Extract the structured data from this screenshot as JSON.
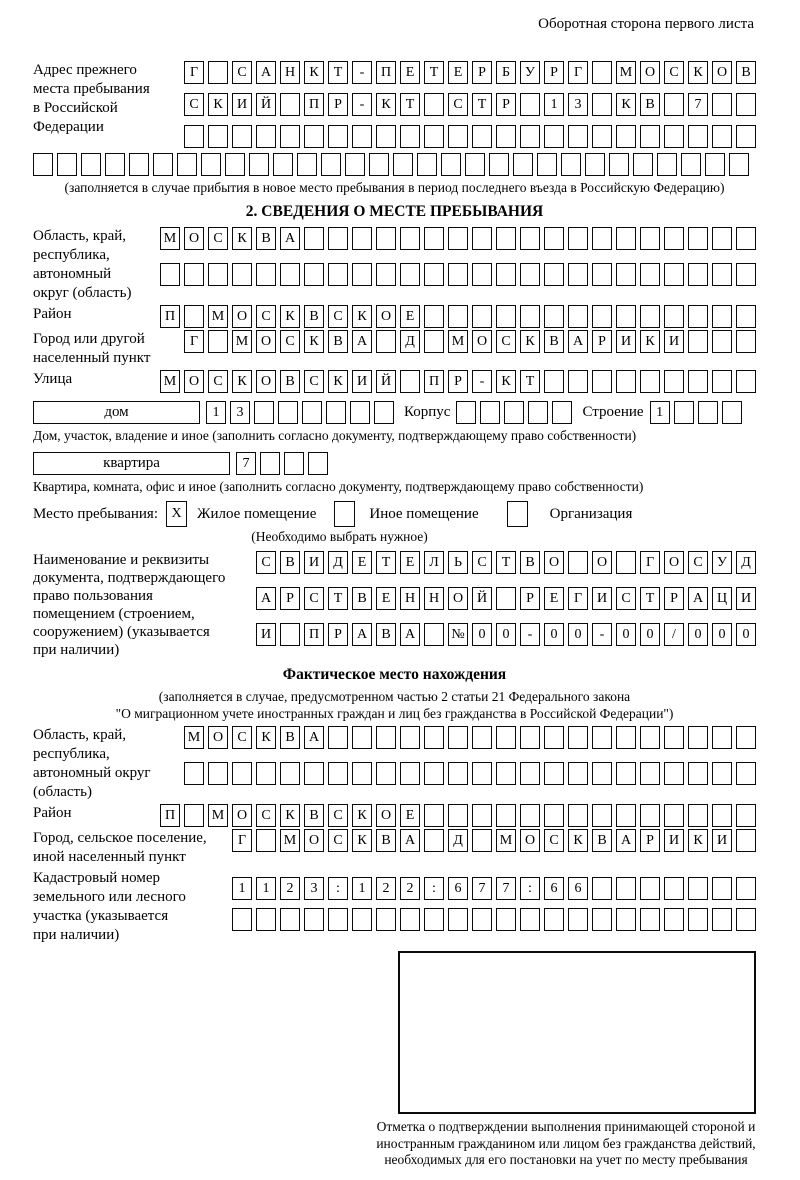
{
  "page": {
    "back_note": "Оборотная сторона первого листа"
  },
  "prev": {
    "label_lines": [
      "Адрес прежнего",
      "места пребывания",
      "в Российской",
      "Федерации"
    ],
    "row1": "Г САНКТ-ПЕТЕРБУРГ МОСКОВ",
    "row2": "СКИЙ ПР-КТ СТР 13 КВ 7",
    "row3": "",
    "row4": "",
    "caption": "(заполняется в случае прибытия в новое место пребывания в период последнего въезда в Российскую Федерацию)"
  },
  "sec2": {
    "title": "2. СВЕДЕНИЯ О МЕСТЕ ПРЕБЫВАНИЯ",
    "oblast": {
      "label_lines": [
        "Область, край,",
        "республика,",
        "автономный",
        "округ (область)"
      ],
      "row1": "МОСКВА",
      "row2": ""
    },
    "raion": {
      "label": "Район",
      "row": "П МОСКВСКОЕ"
    },
    "gorod": {
      "label_lines": [
        "Город или другой",
        "населенный пункт"
      ],
      "row": "Г МОСКВА Д МОСКВАРИКИ"
    },
    "ulitsa": {
      "label": "Улица",
      "row": "МОСКОВСКИЙ ПР-КТ"
    },
    "dom": {
      "box_label": "дом",
      "cells": "13",
      "korpus_label": "Корпус",
      "korpus_cells": "",
      "stroenie_label": "Строение",
      "stroenie_cells": "1",
      "caption": "Дом, участок, владение и иное (заполнить согласно документу, подтверждающему право собственности)"
    },
    "kvartira": {
      "box_label": "квартира",
      "cells": "7",
      "caption": "Квартира, комната, офис и иное (заполнить согласно документу, подтверждающему право собственности)"
    },
    "mesto": {
      "label": "Место пребывания:",
      "options": [
        {
          "label": "Жилое помещение",
          "value": "X"
        },
        {
          "label": "Иное помещение",
          "value": ""
        },
        {
          "label": "Организация",
          "value": ""
        }
      ],
      "caption": "(Необходимо выбрать нужное)"
    },
    "doc": {
      "label_lines": [
        "Наименование и реквизиты",
        "документа, подтверждающего",
        "право пользования",
        "помещением (строением,",
        "сооружением) (указывается",
        "при наличии)"
      ],
      "row1": "СВИДЕТЕЛЬСТВО О ГОСУД",
      "row2": "АРСТВЕННОЙ РЕГИСТРАЦИ",
      "row3": "И ПРАВА №00-00-00/000"
    }
  },
  "fact": {
    "title": "Фактическое место нахождения",
    "caption_line1": "(заполняется в случае, предусмотренном частью 2 статьи 21 Федерального закона",
    "caption_line2": "\"О миграционном учете иностранных граждан и лиц без гражданства в Российской Федерации\")",
    "oblast": {
      "label_lines": [
        "Область, край,",
        "республика,",
        "автономный округ",
        "(область)"
      ],
      "row1": "МОСКВА",
      "row2": ""
    },
    "raion": {
      "label": "Район",
      "row": "П МОСКВСКОЕ"
    },
    "gorod": {
      "label_lines": [
        "Город, сельское поселение,",
        "иной населенный пункт"
      ],
      "row": "Г МОСКВА Д МОСКВАРИКИ"
    },
    "kadastr": {
      "label_lines": [
        "Кадастровый номер",
        "земельного или лесного",
        "участка (указывается",
        "при наличии)"
      ],
      "row1": "1123:122:677:66",
      "row2": ""
    },
    "stamp_caption": "Отметка о подтверждении выполнения принимающей стороной и иностранным гражданином или лицом без гражданства действий, необходимых для его постановки на учет по месту пребывания"
  }
}
